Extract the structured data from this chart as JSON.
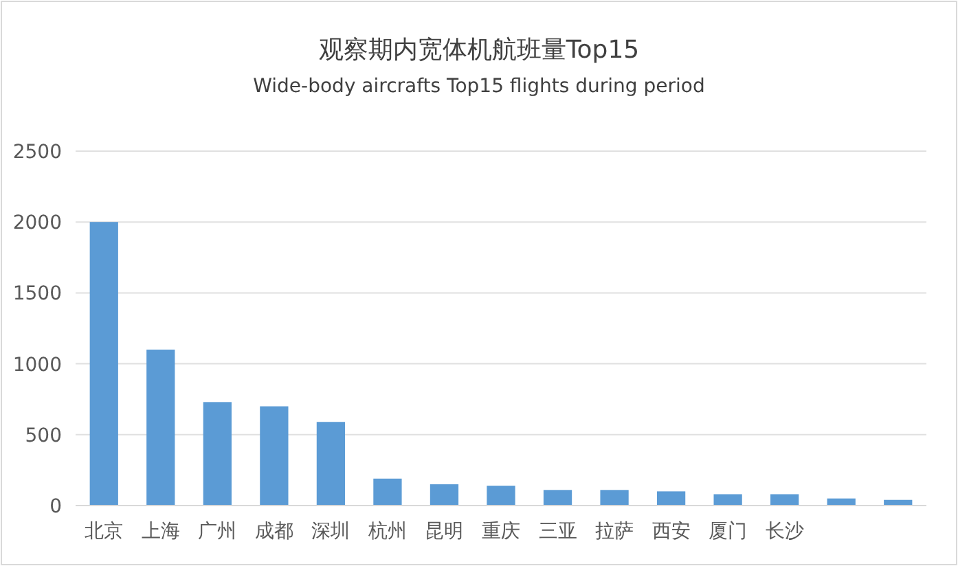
{
  "chart_data": {
    "type": "bar",
    "title": "观察期内宽体机航班量Top15",
    "subtitle": "Wide-body aircrafts Top15 flights during period",
    "categories": [
      "北京",
      "上海",
      "广州",
      "成都",
      "深圳",
      "杭州",
      "昆明",
      "重庆",
      "三亚",
      "拉萨",
      "西安",
      "厦门",
      "长沙",
      null,
      null
    ],
    "values": [
      2000,
      1100,
      730,
      700,
      590,
      190,
      150,
      140,
      110,
      110,
      100,
      80,
      80,
      50,
      40
    ],
    "color": "#5b9bd5",
    "ylim": [
      0,
      2500
    ],
    "yticks": [
      0,
      500,
      1000,
      1500,
      2000,
      2500
    ],
    "grid": "y"
  }
}
